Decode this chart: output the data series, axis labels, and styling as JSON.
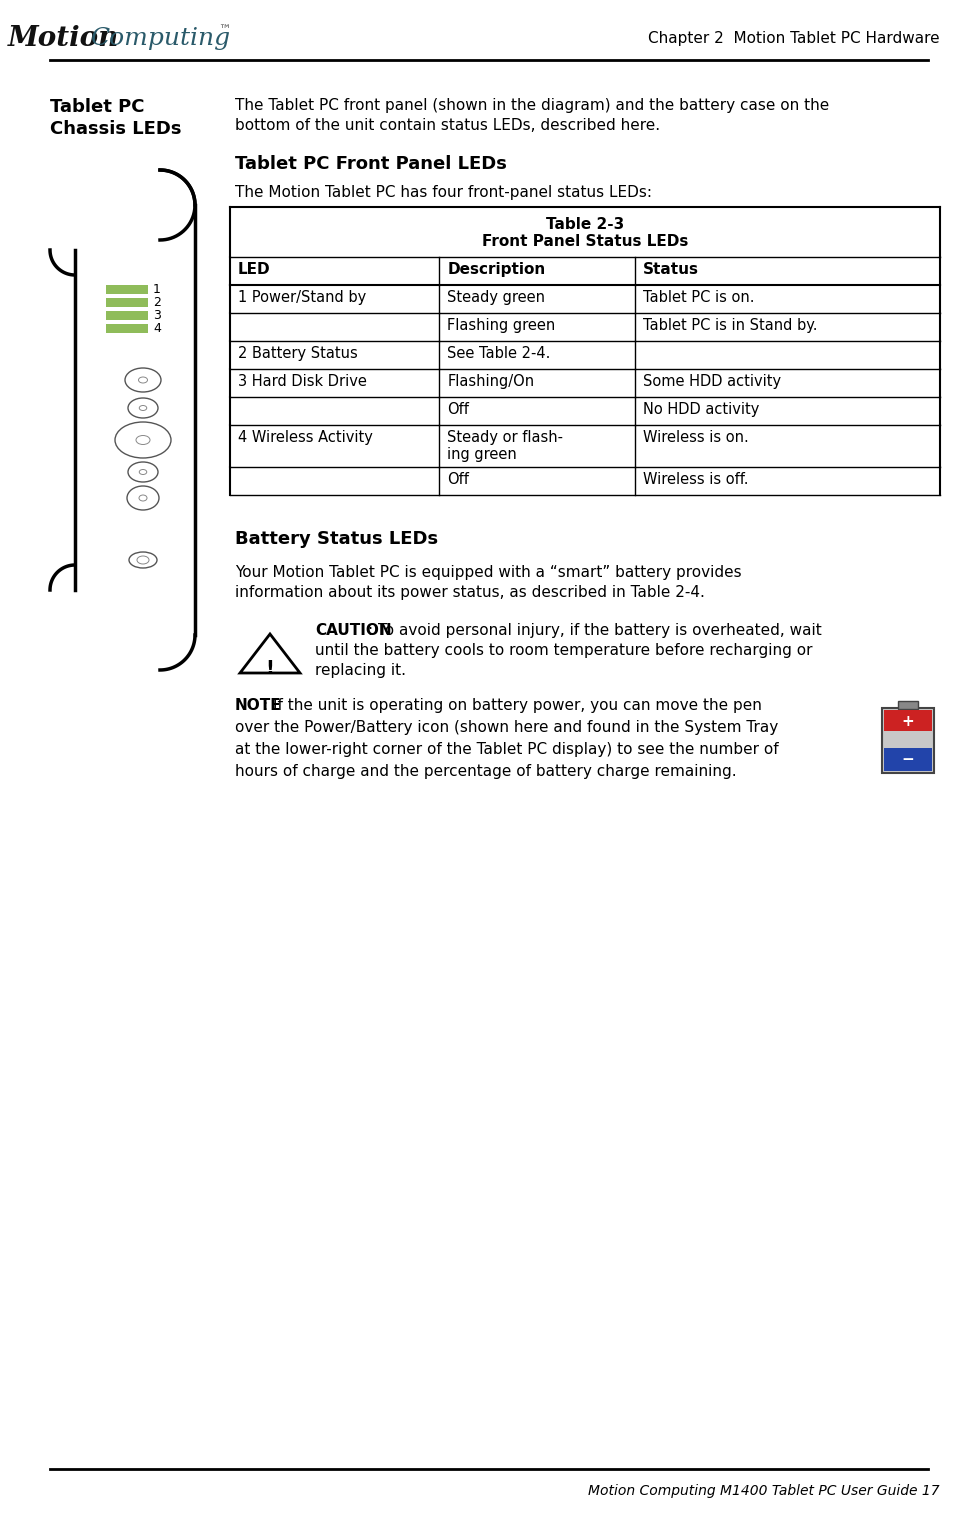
{
  "page_width": 9.78,
  "page_height": 15.21,
  "bg_color": "#ffffff",
  "header_right_text": "Chapter 2  Motion Tablet PC Hardware",
  "footer_right_text": "Motion Computing M1400 Tablet PC User Guide 17",
  "section_label_line1": "Tablet PC",
  "section_label_line2": "Chassis LEDs",
  "section_body_line1": "The Tablet PC front panel (shown in the diagram) and the battery case on the",
  "section_body_line2": "bottom of the unit contain status LEDs, described here.",
  "subsection1_title": "Tablet PC Front Panel LEDs",
  "subsection1_body": "The Motion Tablet PC has four front-panel status LEDs:",
  "table_title_line1": "Table 2-3",
  "table_title_line2": "Front Panel Status LEDs",
  "table_headers": [
    "LED",
    "Description",
    "Status"
  ],
  "led_green_color": "#8fbc5a",
  "table_border_color": "#000000",
  "text_color": "#000000",
  "subsection2_title": "Battery Status LEDs",
  "subsection2_body1": "Your Motion Tablet PC is equipped with a “smart” battery provides",
  "subsection2_body2": "information about its power status, as described in Table 2-4.",
  "caution_bold": "CAUTION",
  "caution_rest": ": To avoid personal injury, if the battery is overheated, wait",
  "caution_line2": "until the battery cools to room temperature before recharging or",
  "caution_line3": "replacing it.",
  "note_bold": "NOTE",
  "note_rest": ": If the unit is operating on battery power, you can move the pen",
  "note_line2": "over the Power/Battery icon (shown here and found in the System Tray",
  "note_line3": "at the lower-right corner of the Tablet PC display) to see the number of",
  "note_line4": "hours of charge and the percentage of battery charge remaining."
}
